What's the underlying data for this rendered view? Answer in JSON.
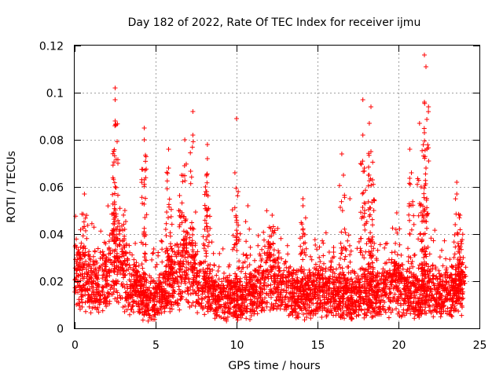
{
  "chart_data": {
    "type": "scatter",
    "title": "Day 182 of 2022, Rate Of TEC Index for receiver ijmu",
    "xlabel": "GPS time / hours",
    "ylabel": "ROTI / TECUs",
    "xlim": [
      0,
      25
    ],
    "ylim": [
      0,
      0.12
    ],
    "xticks": [
      0,
      5,
      10,
      15,
      20,
      25
    ],
    "xtick_labels": [
      "0",
      "5",
      "10",
      "15",
      "20",
      "25"
    ],
    "yticks": [
      0,
      0.02,
      0.04,
      0.06,
      0.08,
      0.1,
      0.12
    ],
    "ytick_labels": [
      "0",
      "0.02",
      "0.04",
      "0.06",
      "0.08",
      "0.1",
      "0.12"
    ],
    "grid": true,
    "marker": "plus",
    "color": "#ff0000",
    "series": [
      {
        "name": "ROTI",
        "baseline_profile": [
          [
            0,
            0.022
          ],
          [
            1,
            0.018
          ],
          [
            2,
            0.02
          ],
          [
            2.5,
            0.03
          ],
          [
            3,
            0.022
          ],
          [
            4,
            0.015
          ],
          [
            4.5,
            0.01
          ],
          [
            5,
            0.012
          ],
          [
            6,
            0.02
          ],
          [
            7,
            0.025
          ],
          [
            8,
            0.015
          ],
          [
            9,
            0.012
          ],
          [
            10,
            0.012
          ],
          [
            11,
            0.013
          ],
          [
            12,
            0.022
          ],
          [
            13,
            0.015
          ],
          [
            14,
            0.013
          ],
          [
            15,
            0.015
          ],
          [
            16,
            0.014
          ],
          [
            17,
            0.012
          ],
          [
            18,
            0.015
          ],
          [
            19,
            0.014
          ],
          [
            20,
            0.016
          ],
          [
            21,
            0.013
          ],
          [
            22,
            0.014
          ],
          [
            23,
            0.014
          ],
          [
            24,
            0.018
          ]
        ],
        "spikes": [
          {
            "x": 0.6,
            "y": 0.057
          },
          {
            "x": 2.5,
            "y": 0.102
          },
          {
            "x": 2.5,
            "y": 0.097
          },
          {
            "x": 2.5,
            "y": 0.088
          },
          {
            "x": 3.1,
            "y": 0.05
          },
          {
            "x": 4.3,
            "y": 0.085
          },
          {
            "x": 4.3,
            "y": 0.08
          },
          {
            "x": 4.3,
            "y": 0.063
          },
          {
            "x": 5.8,
            "y": 0.076
          },
          {
            "x": 5.8,
            "y": 0.068
          },
          {
            "x": 6.6,
            "y": 0.065
          },
          {
            "x": 6.8,
            "y": 0.08
          },
          {
            "x": 7.3,
            "y": 0.092
          },
          {
            "x": 7.3,
            "y": 0.082
          },
          {
            "x": 8.2,
            "y": 0.078
          },
          {
            "x": 8.2,
            "y": 0.072
          },
          {
            "x": 8.1,
            "y": 0.058
          },
          {
            "x": 9.9,
            "y": 0.066
          },
          {
            "x": 10.0,
            "y": 0.089
          },
          {
            "x": 10.1,
            "y": 0.058
          },
          {
            "x": 10.7,
            "y": 0.052
          },
          {
            "x": 12.2,
            "y": 0.048
          },
          {
            "x": 14.1,
            "y": 0.055
          },
          {
            "x": 14.1,
            "y": 0.052
          },
          {
            "x": 16.5,
            "y": 0.074
          },
          {
            "x": 16.6,
            "y": 0.065
          },
          {
            "x": 17.0,
            "y": 0.055
          },
          {
            "x": 17.8,
            "y": 0.097
          },
          {
            "x": 17.8,
            "y": 0.082
          },
          {
            "x": 17.9,
            "y": 0.068
          },
          {
            "x": 18.3,
            "y": 0.094
          },
          {
            "x": 18.2,
            "y": 0.087
          },
          {
            "x": 18.3,
            "y": 0.075
          },
          {
            "x": 18.4,
            "y": 0.063
          },
          {
            "x": 19.9,
            "y": 0.049
          },
          {
            "x": 20.7,
            "y": 0.076
          },
          {
            "x": 20.8,
            "y": 0.066
          },
          {
            "x": 21.3,
            "y": 0.087
          },
          {
            "x": 21.4,
            "y": 0.06
          },
          {
            "x": 21.6,
            "y": 0.116
          },
          {
            "x": 21.7,
            "y": 0.111
          },
          {
            "x": 21.6,
            "y": 0.096
          },
          {
            "x": 21.6,
            "y": 0.083
          },
          {
            "x": 21.7,
            "y": 0.068
          },
          {
            "x": 23.6,
            "y": 0.062
          },
          {
            "x": 23.6,
            "y": 0.057
          },
          {
            "x": 23.8,
            "y": 0.048
          },
          {
            "x": 24.0,
            "y": 0.03
          }
        ]
      }
    ]
  }
}
